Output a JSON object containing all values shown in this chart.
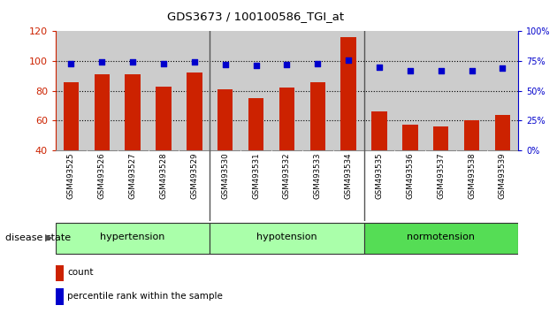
{
  "title": "GDS3673 / 100100586_TGI_at",
  "samples": [
    "GSM493525",
    "GSM493526",
    "GSM493527",
    "GSM493528",
    "GSM493529",
    "GSM493530",
    "GSM493531",
    "GSM493532",
    "GSM493533",
    "GSM493534",
    "GSM493535",
    "GSM493536",
    "GSM493537",
    "GSM493538",
    "GSM493539"
  ],
  "counts": [
    86,
    91,
    91,
    83,
    92,
    81,
    75,
    82,
    86,
    116,
    66,
    57,
    56,
    60,
    64
  ],
  "percentiles": [
    73,
    74,
    74,
    73,
    74,
    72,
    71,
    72,
    73,
    76,
    70,
    67,
    67,
    67,
    69
  ],
  "group_configs": [
    {
      "name": "hypertension",
      "start": 0,
      "end": 5,
      "color": "#AAFFAA"
    },
    {
      "name": "hypotension",
      "start": 5,
      "end": 10,
      "color": "#AAFFAA"
    },
    {
      "name": "normotension",
      "start": 10,
      "end": 15,
      "color": "#55DD55"
    }
  ],
  "ylim_left": [
    40,
    120
  ],
  "ylim_right": [
    0,
    100
  ],
  "bar_color": "#CC2200",
  "dot_color": "#0000CC",
  "bg_color": "#FFFFFF",
  "tick_label_bg": "#CCCCCC",
  "disease_state_label": "disease state",
  "legend_count_label": "count",
  "legend_pct_label": "percentile rank within the sample"
}
